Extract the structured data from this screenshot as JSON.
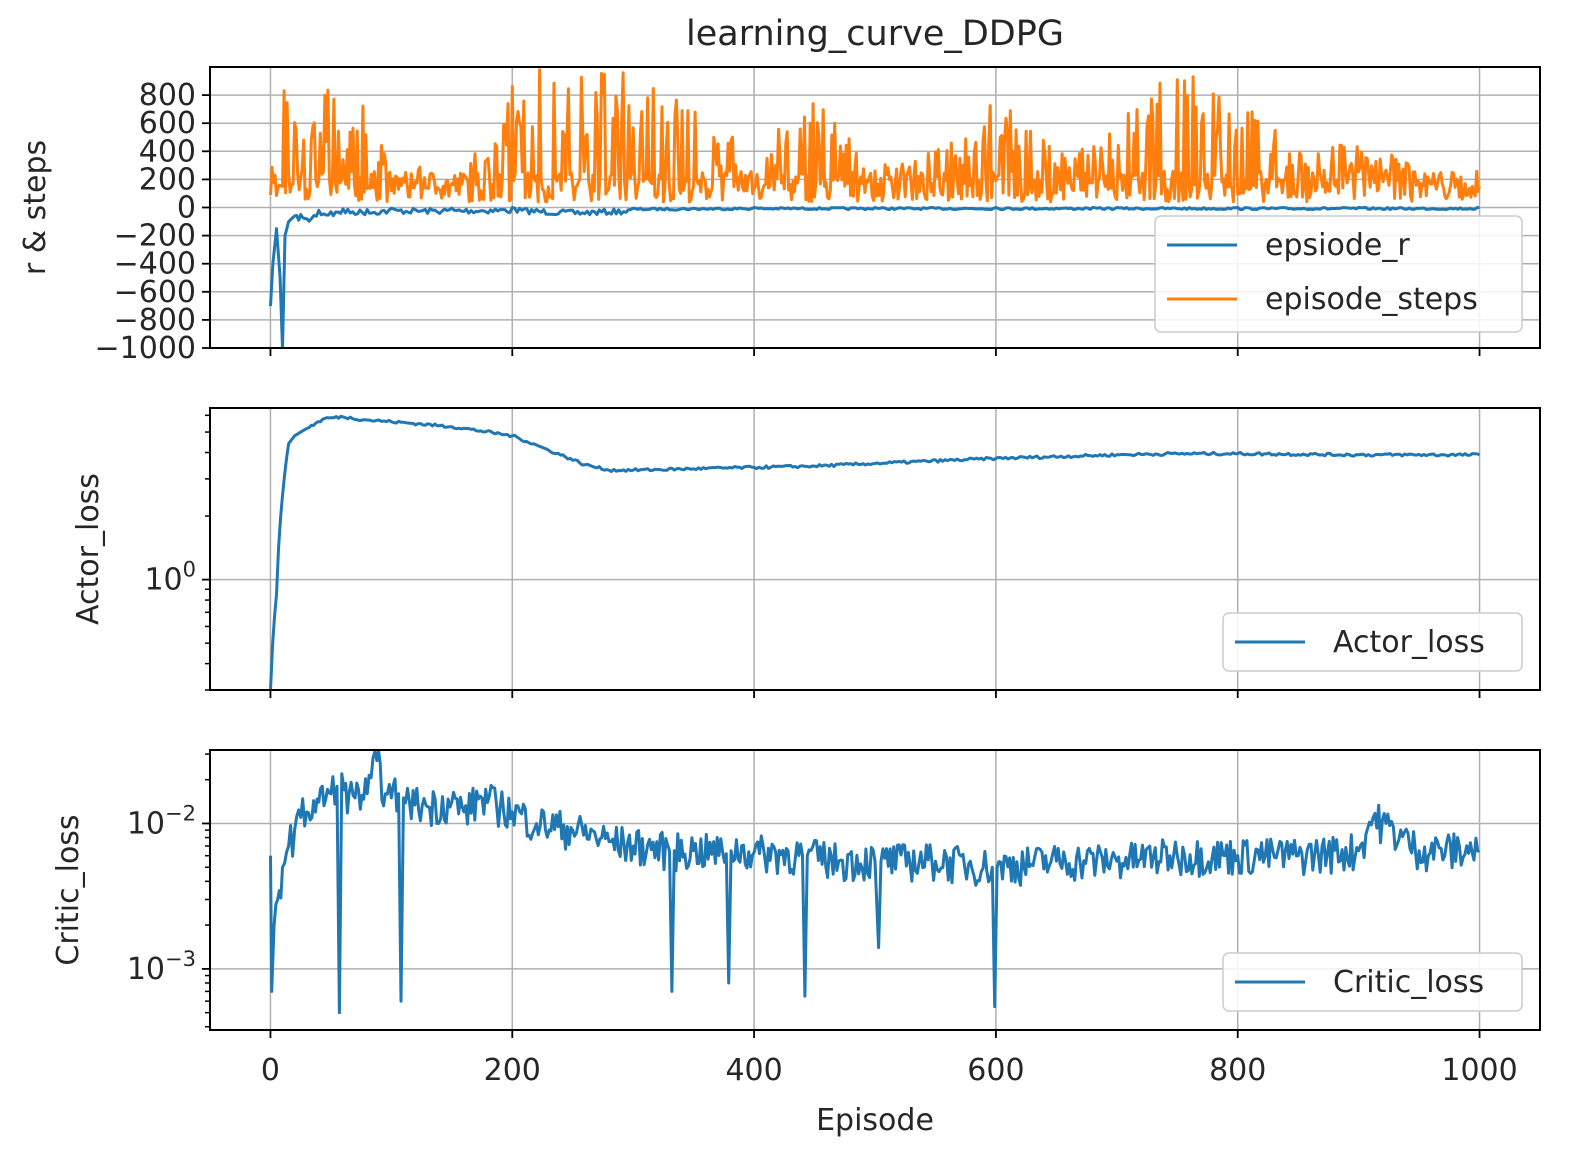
{
  "figure": {
    "title": "learning_curve_DDPG",
    "xlabel": "Episode"
  },
  "colors": {
    "series_blue": "#1f77b4",
    "series_orange": "#ff7f0e",
    "grid": "#b0b0b0",
    "axes": "#000000"
  },
  "chart_data": [
    {
      "type": "line",
      "ylabel": "r & steps",
      "xlim": [
        -50,
        1050
      ],
      "ylim": [
        -1000,
        1000
      ],
      "yscale": "linear",
      "grid": true,
      "xticks": [
        0,
        200,
        400,
        600,
        800,
        1000
      ],
      "yticks": [
        {
          "value": 800,
          "label": "800"
        },
        {
          "value": 600,
          "label": "600"
        },
        {
          "value": 400,
          "label": "400"
        },
        {
          "value": 200,
          "label": "200"
        },
        {
          "value": 0,
          "label": "0"
        },
        {
          "value": -200,
          "label": "−200"
        },
        {
          "value": -400,
          "label": "−400"
        },
        {
          "value": -600,
          "label": "−600"
        },
        {
          "value": -800,
          "label": "−800"
        },
        {
          "value": -1000,
          "label": "−1000"
        }
      ],
      "legend_position": "lower-right",
      "series": [
        {
          "name": "epsiode_r",
          "color": "#1f77b4",
          "x": [
            0,
            2,
            5,
            8,
            10,
            12,
            15,
            20,
            25,
            30,
            40,
            50,
            60,
            80,
            100,
            150,
            200,
            250,
            300,
            400,
            500,
            600,
            700,
            800,
            900,
            1000
          ],
          "y": [
            -700,
            -400,
            -150,
            -500,
            -1000,
            -200,
            -100,
            -60,
            -50,
            -80,
            -20,
            -30,
            -10,
            -15,
            -5,
            -5,
            0,
            -20,
            -5,
            0,
            0,
            0,
            0,
            0,
            0,
            0
          ]
        },
        {
          "name": "episode_steps",
          "color": "#ff7f0e",
          "x": [
            0,
            5,
            10,
            15,
            20,
            25,
            30,
            40,
            50,
            60,
            80,
            100,
            120,
            150,
            180,
            200,
            250,
            300,
            350,
            400,
            450,
            500,
            550,
            600,
            650,
            700,
            750,
            800,
            850,
            900,
            950,
            1000
          ],
          "y": [
            150,
            1000,
            1000,
            900,
            1000,
            300,
            1000,
            600,
            1000,
            400,
            1000,
            200,
            300,
            200,
            500,
            1000,
            1000,
            1000,
            700,
            400,
            800,
            300,
            400,
            800,
            400,
            600,
            1000,
            800,
            400,
            500,
            300,
            150
          ]
        }
      ]
    },
    {
      "type": "line",
      "ylabel": "Actor_loss",
      "xlim": [
        -50,
        1050
      ],
      "ylim": [
        0.3,
        6.5
      ],
      "yscale": "log",
      "grid": true,
      "xticks": [
        0,
        200,
        400,
        600,
        800,
        1000
      ],
      "yticks": [
        {
          "value": 1,
          "base": "10",
          "exp": "0"
        }
      ],
      "legend_position": "lower-right",
      "series": [
        {
          "name": "Actor_loss",
          "color": "#1f77b4",
          "x": [
            0,
            5,
            10,
            15,
            20,
            30,
            45,
            60,
            80,
            100,
            150,
            200,
            230,
            260,
            280,
            300,
            350,
            400,
            450,
            500,
            600,
            700,
            750,
            800,
            900,
            1000
          ],
          "y": [
            0.3,
            0.85,
            2.5,
            4.4,
            4.8,
            5.2,
            5.8,
            5.9,
            5.7,
            5.6,
            5.3,
            4.8,
            4.1,
            3.5,
            3.3,
            3.3,
            3.35,
            3.4,
            3.45,
            3.55,
            3.75,
            3.9,
            3.95,
            3.95,
            3.9,
            3.9
          ]
        }
      ]
    },
    {
      "type": "line",
      "ylabel": "Critic_loss",
      "xlim": [
        -50,
        1050
      ],
      "ylim": [
        0.00038,
        0.032
      ],
      "yscale": "log",
      "grid": true,
      "xticks": [
        0,
        200,
        400,
        600,
        800,
        1000
      ],
      "yticks": [
        {
          "value": 0.01,
          "base": "10",
          "exp": "−2"
        },
        {
          "value": 0.001,
          "base": "10",
          "exp": "−3"
        }
      ],
      "legend_position": "lower-right",
      "series": [
        {
          "name": "Critic_loss",
          "color": "#1f77b4",
          "x": [
            0,
            1,
            3,
            6,
            10,
            15,
            20,
            25,
            30,
            40,
            50,
            55,
            57,
            59,
            61,
            65,
            70,
            80,
            88,
            95,
            100,
            106,
            108,
            110,
            115,
            130,
            150,
            160,
            175,
            190,
            200,
            220,
            250,
            280,
            300,
            330,
            332,
            334,
            350,
            377,
            379,
            381,
            400,
            440,
            442,
            444,
            470,
            500,
            503,
            505,
            550,
            597,
            599,
            601,
            650,
            700,
            750,
            800,
            850,
            900,
            912,
            950,
            1000
          ],
          "y": [
            0.006,
            0.0007,
            0.002,
            0.003,
            0.005,
            0.007,
            0.009,
            0.011,
            0.012,
            0.014,
            0.016,
            0.018,
            0.0005,
            0.022,
            0.017,
            0.016,
            0.015,
            0.016,
            0.027,
            0.016,
            0.015,
            0.016,
            0.0006,
            0.015,
            0.014,
            0.013,
            0.014,
            0.012,
            0.015,
            0.013,
            0.012,
            0.01,
            0.009,
            0.0075,
            0.007,
            0.0065,
            0.0007,
            0.0065,
            0.0065,
            0.0062,
            0.0008,
            0.0065,
            0.0063,
            0.006,
            0.00065,
            0.006,
            0.0055,
            0.0055,
            0.0014,
            0.0055,
            0.0055,
            0.005,
            0.00055,
            0.005,
            0.0055,
            0.0055,
            0.006,
            0.006,
            0.006,
            0.0065,
            0.011,
            0.0065,
            0.0065
          ]
        }
      ]
    }
  ]
}
